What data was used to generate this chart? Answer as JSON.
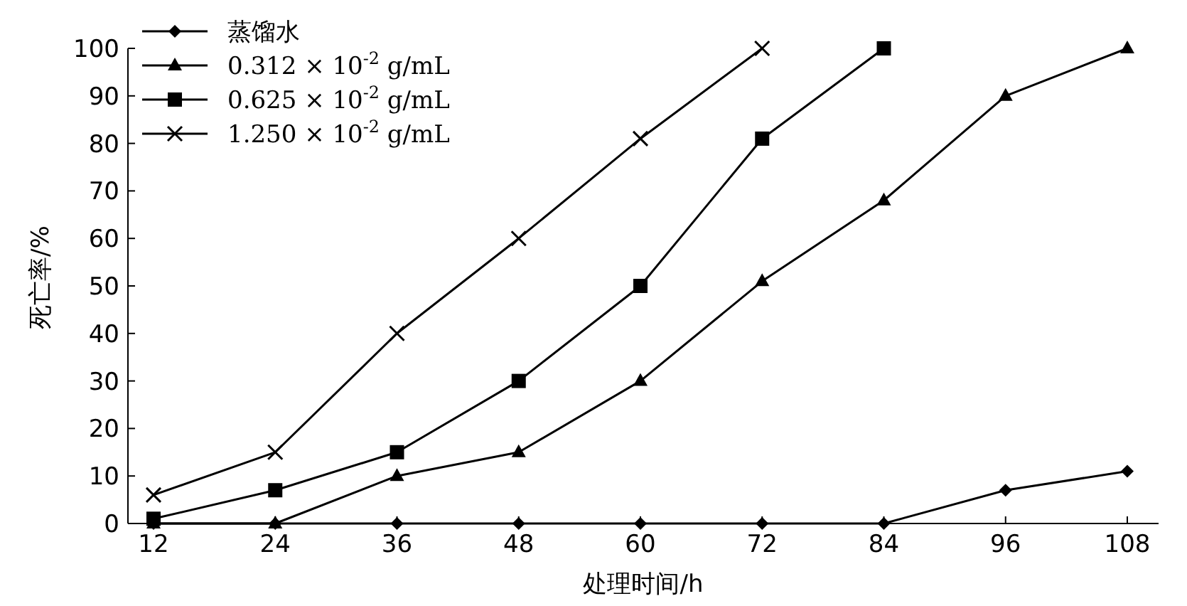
{
  "chart_data": {
    "type": "line",
    "xlabel": "处理时间/h",
    "ylabel": "死亡率/%",
    "categories": [
      "12",
      "24",
      "36",
      "48",
      "60",
      "72",
      "84",
      "96",
      "108"
    ],
    "series": [
      {
        "name": "蒸馏水",
        "color": "#000000",
        "marker": "diamond",
        "values": [
          0,
          0,
          0,
          0,
          0,
          0,
          0,
          7,
          11
        ]
      },
      {
        "name": "0.312 × 10$^{-2}$ g/mL",
        "color": "#000000",
        "marker": "triangle",
        "values": [
          0,
          0,
          10,
          15,
          30,
          51,
          68,
          90,
          100
        ]
      },
      {
        "name": "0.625 × 10$^{-2}$ g/mL",
        "color": "#000000",
        "marker": "square",
        "values": [
          1,
          7,
          15,
          30,
          50,
          81,
          100,
          null,
          null
        ]
      },
      {
        "name": "1.250 × 10$^{-2}$ g/mL",
        "color": "#000000",
        "marker": "cross",
        "values": [
          6,
          15,
          40,
          60,
          81,
          100,
          null,
          null,
          null
        ]
      }
    ],
    "ylim": [
      0,
      100
    ],
    "yticks": [
      0,
      10,
      20,
      30,
      40,
      50,
      60,
      70,
      80,
      90,
      100
    ],
    "grid": false,
    "legend": "top left",
    "line_style": "solid"
  }
}
